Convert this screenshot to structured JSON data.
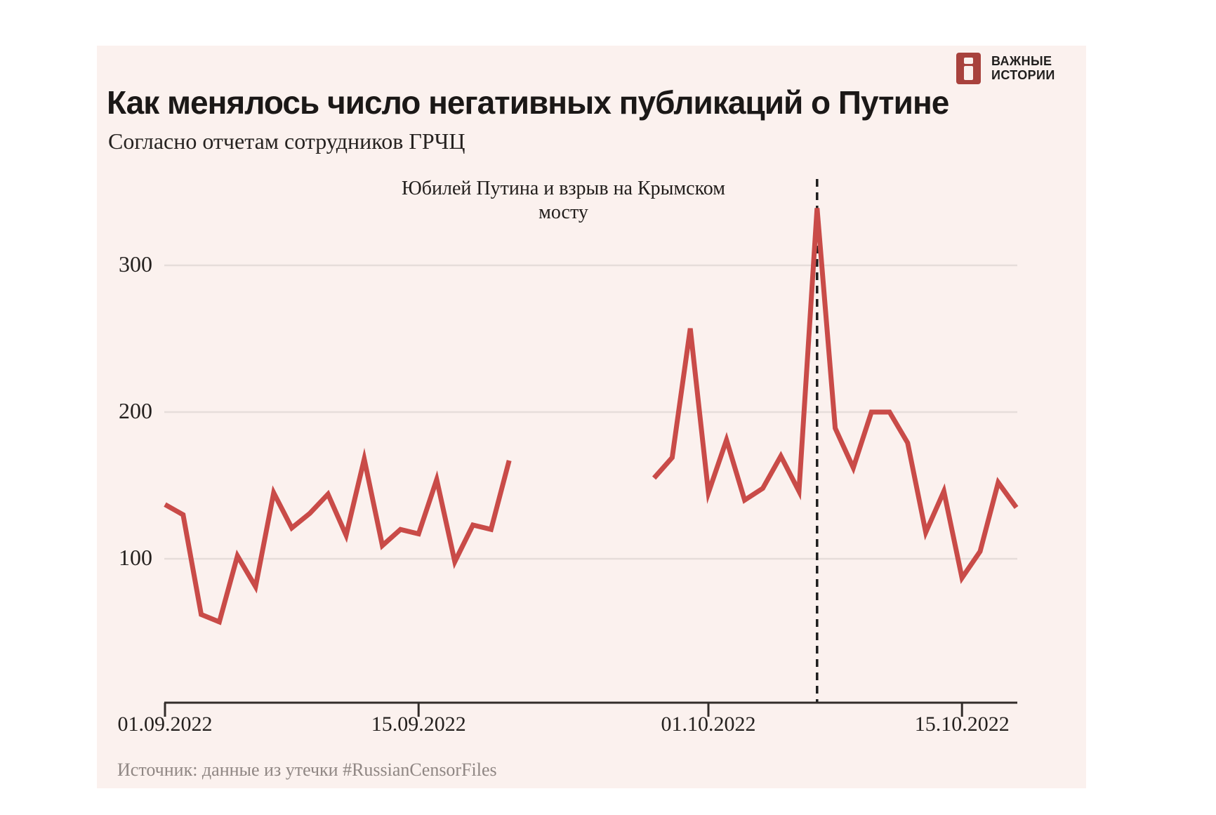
{
  "brand": {
    "name_line1": "ВАЖНЫЕ",
    "name_line2": "ИСТОРИИ"
  },
  "header": {
    "title": "Как менялось число негативных публикаций о Путине",
    "subtitle": "Согласно отчетам сотрудников ГРЧЦ"
  },
  "annotation": {
    "text": "Юбилей Путина и взрыв на Крымском мосту",
    "date": "07.10.2022"
  },
  "source_note": "Источник: данные из утечки #RussianCensorFiles",
  "colors": {
    "card_bg": "#fbf1ee",
    "line": "#c94b48",
    "logo_square": "#a8423d",
    "axis": "#332d2a",
    "grid": "#e6ddda",
    "dashed": "#1d1d1d",
    "muted_text": "#8f8683"
  },
  "chart_data": {
    "type": "line",
    "title": "Как менялось число негативных публикаций о Путине",
    "xlabel": "",
    "ylabel": "",
    "grid": "horizontal gridlines only",
    "legend": "none",
    "x_axis": {
      "start_date": "01.09.2022",
      "tick_labels": [
        "01.09.2022",
        "15.09.2022",
        "01.10.2022",
        "15.10.2022"
      ]
    },
    "y_axis": {
      "tick_labels": [
        100,
        200,
        300
      ],
      "range": [
        0,
        360
      ]
    },
    "event_marker": {
      "date": "07.10.2022",
      "style": "black dashed vertical line",
      "label": "Юбилей Путина и взрыв на Крымском мосту"
    },
    "series": [
      {
        "name": "segment-1",
        "points": [
          {
            "date": "01.09.2022",
            "value": 137
          },
          {
            "date": "02.09.2022",
            "value": 130
          },
          {
            "date": "03.09.2022",
            "value": 62
          },
          {
            "date": "04.09.2022",
            "value": 57
          },
          {
            "date": "05.09.2022",
            "value": 102
          },
          {
            "date": "06.09.2022",
            "value": 81
          },
          {
            "date": "07.09.2022",
            "value": 145
          },
          {
            "date": "08.09.2022",
            "value": 121
          },
          {
            "date": "09.09.2022",
            "value": 131
          },
          {
            "date": "10.09.2022",
            "value": 144
          },
          {
            "date": "11.09.2022",
            "value": 116
          },
          {
            "date": "12.09.2022",
            "value": 168
          },
          {
            "date": "13.09.2022",
            "value": 109
          },
          {
            "date": "14.09.2022",
            "value": 120
          },
          {
            "date": "15.09.2022",
            "value": 117
          },
          {
            "date": "16.09.2022",
            "value": 154
          },
          {
            "date": "17.09.2022",
            "value": 98
          },
          {
            "date": "18.09.2022",
            "value": 123
          },
          {
            "date": "19.09.2022",
            "value": 120
          },
          {
            "date": "20.09.2022",
            "value": 167
          }
        ]
      },
      {
        "name": "segment-2",
        "points": [
          {
            "date": "28.09.2022",
            "value": 155
          },
          {
            "date": "29.09.2022",
            "value": 169
          },
          {
            "date": "30.09.2022",
            "value": 257
          },
          {
            "date": "01.10.2022",
            "value": 145
          },
          {
            "date": "02.10.2022",
            "value": 181
          },
          {
            "date": "03.10.2022",
            "value": 140
          },
          {
            "date": "04.10.2022",
            "value": 148
          },
          {
            "date": "05.10.2022",
            "value": 170
          },
          {
            "date": "06.10.2022",
            "value": 146
          },
          {
            "date": "07.10.2022",
            "value": 339
          },
          {
            "date": "08.10.2022",
            "value": 189
          },
          {
            "date": "09.10.2022",
            "value": 162
          },
          {
            "date": "10.10.2022",
            "value": 200
          },
          {
            "date": "11.10.2022",
            "value": 200
          },
          {
            "date": "12.10.2022",
            "value": 179
          },
          {
            "date": "13.10.2022",
            "value": 118
          },
          {
            "date": "14.10.2022",
            "value": 146
          },
          {
            "date": "15.10.2022",
            "value": 87
          },
          {
            "date": "16.10.2022",
            "value": 105
          },
          {
            "date": "17.10.2022",
            "value": 152
          },
          {
            "date": "18.10.2022",
            "value": 135
          }
        ]
      }
    ]
  }
}
